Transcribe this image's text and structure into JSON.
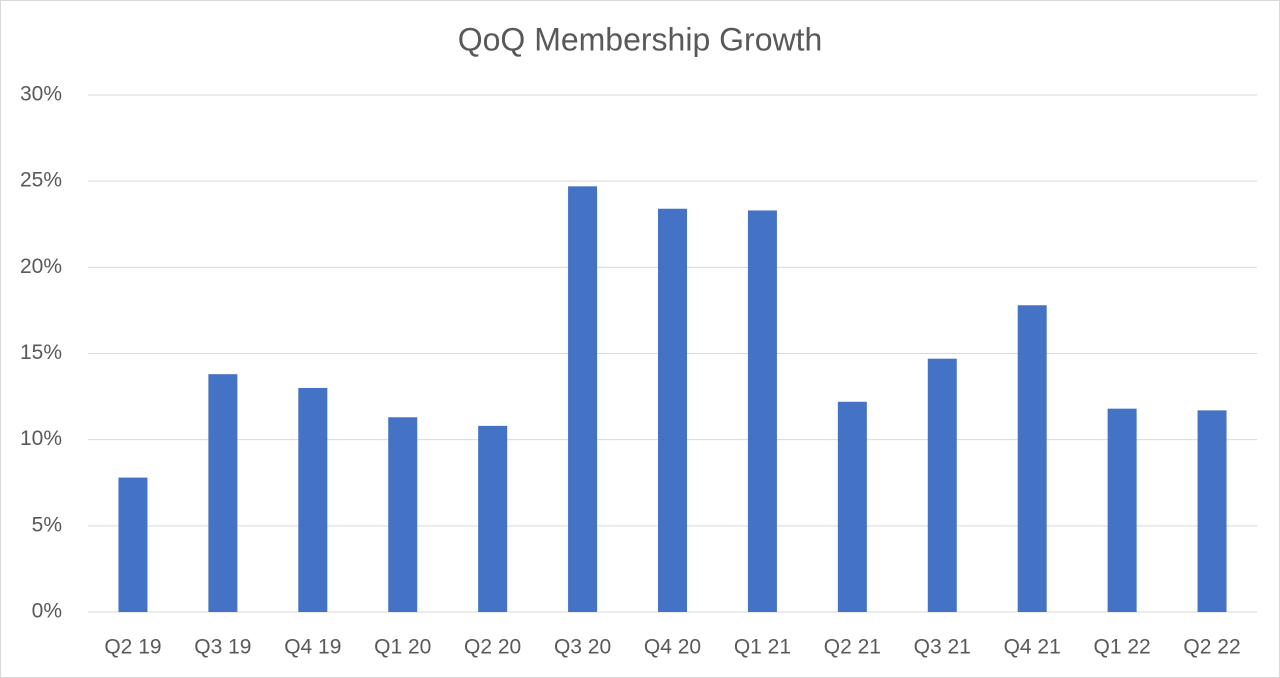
{
  "chart_data": {
    "type": "bar",
    "title": "QoQ Membership Growth",
    "categories": [
      "Q2 19",
      "Q3 19",
      "Q4 19",
      "Q1 20",
      "Q2 20",
      "Q3 20",
      "Q4 20",
      "Q1 21",
      "Q2 21",
      "Q3 21",
      "Q4 21",
      "Q1 22",
      "Q2 22"
    ],
    "values": [
      7.8,
      13.8,
      13.0,
      11.3,
      10.8,
      24.7,
      23.4,
      23.3,
      12.2,
      14.7,
      17.8,
      11.8,
      11.7
    ],
    "color": "#4472c4",
    "ylim": [
      0,
      30
    ],
    "yticks": [
      {
        "value": 0,
        "label": "0%"
      },
      {
        "value": 5,
        "label": "5%"
      },
      {
        "value": 10,
        "label": "10%"
      },
      {
        "value": 15,
        "label": "15%"
      },
      {
        "value": 20,
        "label": "20%"
      },
      {
        "value": 25,
        "label": "25%"
      },
      {
        "value": 30,
        "label": "30%"
      }
    ],
    "grid": true
  }
}
